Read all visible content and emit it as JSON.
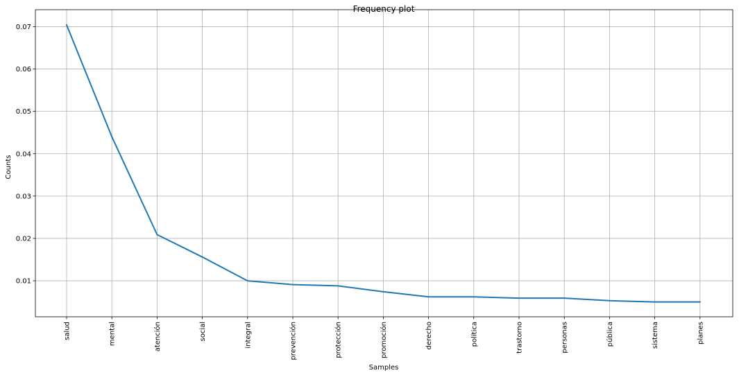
{
  "chart_data": {
    "type": "line",
    "title": "Frequency plot",
    "xlabel": "Samples",
    "ylabel": "Counts",
    "categories": [
      "salud",
      "mental",
      "atención",
      "social",
      "integral",
      "prevención",
      "protección",
      "promoción",
      "derecho",
      "política",
      "trastorno",
      "personas",
      "pública",
      "sistema",
      "planes"
    ],
    "values": [
      0.0704,
      0.044,
      0.0209,
      0.0156,
      0.01,
      0.0091,
      0.0088,
      0.0074,
      0.0062,
      0.0062,
      0.0059,
      0.0059,
      0.0053,
      0.005,
      0.005
    ],
    "yticks": [
      0.01,
      0.02,
      0.03,
      0.04,
      0.05,
      0.06,
      0.07
    ],
    "ylim": [
      0.0015,
      0.074
    ],
    "grid": true,
    "color": "#1f77b4"
  }
}
